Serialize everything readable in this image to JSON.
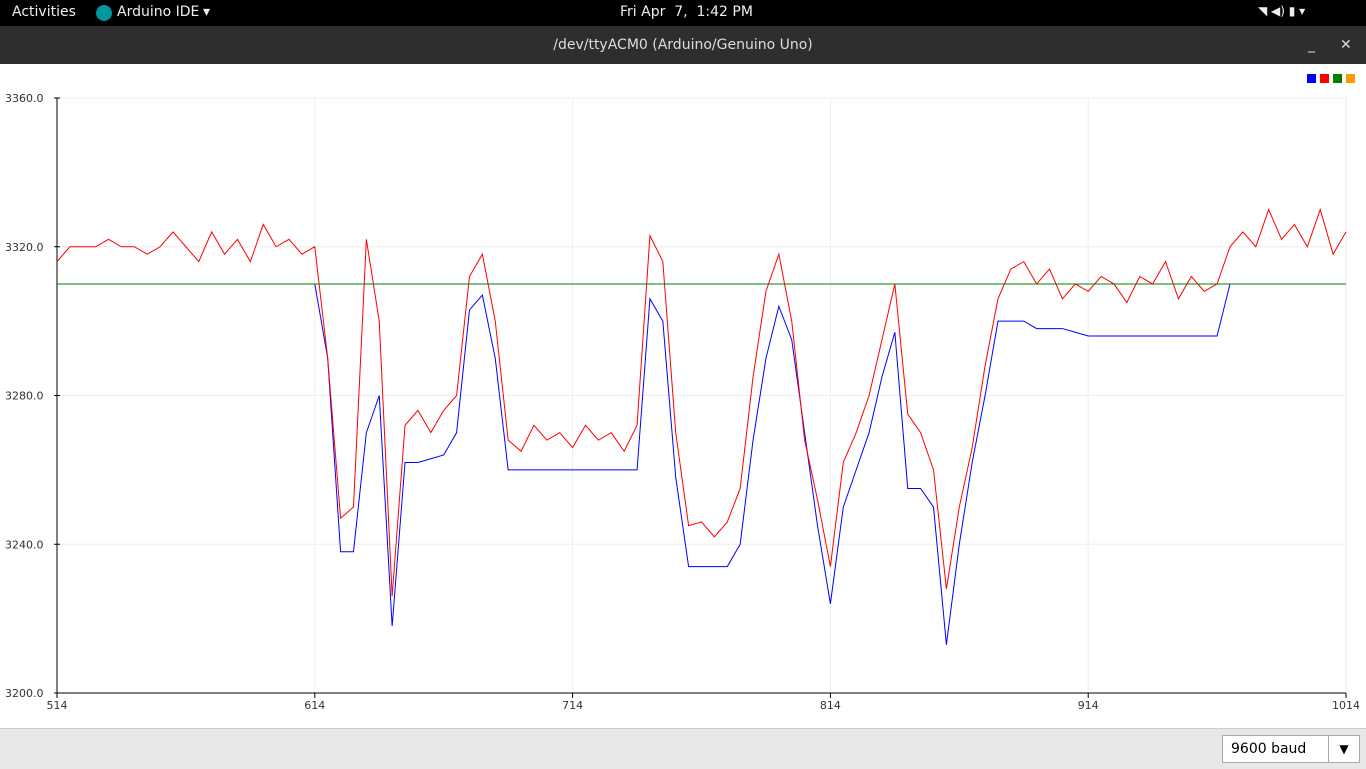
{
  "topbar": {
    "activities": "Activities",
    "app": "Arduino IDE",
    "clock": "Fri Apr  7,  1:42 PM"
  },
  "window": {
    "title": "/dev/ttyACM0 (Arduino/Genuino Uno)"
  },
  "baud": "9600 baud",
  "chart_data": {
    "type": "line",
    "x": [
      514,
      519,
      524,
      529,
      534,
      539,
      544,
      549,
      554,
      559,
      564,
      569,
      574,
      579,
      584,
      589,
      594,
      599,
      604,
      609,
      614,
      619,
      624,
      629,
      634,
      639,
      644,
      649,
      654,
      659,
      664,
      669,
      674,
      679,
      684,
      689,
      694,
      699,
      704,
      709,
      714,
      719,
      724,
      729,
      734,
      739,
      744,
      749,
      754,
      759,
      764,
      769,
      774,
      779,
      784,
      789,
      794,
      799,
      804,
      809,
      814,
      819,
      824,
      829,
      834,
      839,
      844,
      849,
      854,
      859,
      864,
      869,
      874,
      879,
      884,
      889,
      894,
      899,
      904,
      909,
      914,
      919,
      924,
      929,
      934,
      939,
      944,
      949,
      954,
      959,
      964,
      969,
      974,
      979,
      984,
      989,
      994,
      999,
      1004,
      1009,
      1014
    ],
    "series": [
      {
        "color": "#0000ff",
        "values": [
          3310,
          3310,
          3310,
          3310,
          3310,
          3310,
          3310,
          3310,
          3310,
          3310,
          3310,
          3310,
          3310,
          3310,
          3310,
          3310,
          3310,
          3310,
          3310,
          3310,
          3310,
          3290,
          3238,
          3238,
          3270,
          3280,
          3218,
          3262,
          3262,
          3263,
          3264,
          3270,
          3303,
          3307,
          3290,
          3260,
          3260,
          3260,
          3260,
          3260,
          3260,
          3260,
          3260,
          3260,
          3260,
          3260,
          3306,
          3300,
          3258,
          3234,
          3234,
          3234,
          3234,
          3240,
          3268,
          3290,
          3304,
          3295,
          3270,
          3245,
          3224,
          3250,
          3260,
          3270,
          3285,
          3297,
          3255,
          3255,
          3250,
          3213,
          3240,
          3262,
          3280,
          3300,
          3300,
          3300,
          3298,
          3298,
          3298,
          3297,
          3296,
          3296,
          3296,
          3296,
          3296,
          3296,
          3296,
          3296,
          3296,
          3296,
          3296,
          3310,
          null,
          null,
          null,
          null,
          null,
          null,
          null,
          null,
          null
        ]
      },
      {
        "color": "#ff0000",
        "values": [
          3316,
          3320,
          3320,
          3320,
          3322,
          3320,
          3320,
          3318,
          3320,
          3324,
          3320,
          3316,
          3324,
          3318,
          3322,
          3316,
          3326,
          3320,
          3322,
          3318,
          3320,
          3290,
          3247,
          3250,
          3322,
          3300,
          3226,
          3272,
          3276,
          3270,
          3276,
          3280,
          3312,
          3318,
          3300,
          3268,
          3265,
          3272,
          3268,
          3270,
          3266,
          3272,
          3268,
          3270,
          3265,
          3272,
          3323,
          3316,
          3270,
          3245,
          3246,
          3242,
          3246,
          3255,
          3285,
          3308,
          3318,
          3300,
          3268,
          3252,
          3234,
          3262,
          3270,
          3280,
          3295,
          3310,
          3275,
          3270,
          3260,
          3228,
          3250,
          3266,
          3288,
          3306,
          3314,
          3316,
          3310,
          3314,
          3306,
          3310,
          3308,
          3312,
          3310,
          3305,
          3312,
          3310,
          3316,
          3306,
          3312,
          3308,
          3310,
          3320,
          3324,
          3320,
          3330,
          3322,
          3326,
          3320,
          3330,
          3318,
          3324
        ]
      },
      {
        "color": "#008000",
        "values": [
          3310,
          3310,
          3310,
          3310,
          3310,
          3310,
          3310,
          3310,
          3310,
          3310,
          3310,
          3310,
          3310,
          3310,
          3310,
          3310,
          3310,
          3310,
          3310,
          3310,
          3310,
          3310,
          3310,
          3310,
          3310,
          3310,
          3310,
          3310,
          3310,
          3310,
          3310,
          3310,
          3310,
          3310,
          3310,
          3310,
          3310,
          3310,
          3310,
          3310,
          3310,
          3310,
          3310,
          3310,
          3310,
          3310,
          3310,
          3310,
          3310,
          3310,
          3310,
          3310,
          3310,
          3310,
          3310,
          3310,
          3310,
          3310,
          3310,
          3310,
          3310,
          3310,
          3310,
          3310,
          3310,
          3310,
          3310,
          3310,
          3310,
          3310,
          3310,
          3310,
          3310,
          3310,
          3310,
          3310,
          3310,
          3310,
          3310,
          3310,
          3310,
          3310,
          3310,
          3310,
          3310,
          3310,
          3310,
          3310,
          3310,
          3310,
          3310,
          3310,
          3310,
          3310,
          3310,
          3310,
          3310,
          3310,
          3310,
          3310,
          3310
        ]
      },
      {
        "color": "#ff9900",
        "values": [
          null,
          null,
          null,
          null,
          null,
          null,
          null,
          null,
          null,
          null,
          null,
          null,
          null,
          null,
          null,
          null,
          null,
          null,
          null,
          null,
          null,
          null,
          null,
          null,
          null,
          null,
          null,
          null,
          null,
          null,
          null,
          null,
          null,
          null,
          null,
          null,
          null,
          null,
          null,
          null,
          null,
          null,
          null,
          null,
          null,
          null,
          null,
          null,
          null,
          null,
          null,
          null,
          null,
          null,
          null,
          null,
          null,
          null,
          null,
          null,
          null,
          null,
          null,
          null,
          null,
          null,
          null,
          null,
          null,
          null,
          null,
          null,
          null,
          null,
          null,
          null,
          null,
          null,
          null,
          null,
          null,
          null,
          null,
          null,
          null,
          null,
          null,
          null,
          null,
          null,
          null,
          null,
          null,
          null,
          null,
          null,
          null,
          null,
          null,
          null,
          null
        ]
      }
    ],
    "xlim": [
      514,
      1014
    ],
    "xticks": [
      514,
      614,
      714,
      814,
      914,
      1014
    ],
    "ylim": [
      3200,
      3360
    ],
    "yticks": [
      {
        "value": 3200,
        "label": "3200.0"
      },
      {
        "value": 3240,
        "label": "3240.0"
      },
      {
        "value": 3280,
        "label": "3280.0"
      },
      {
        "value": 3320,
        "label": "3320.0"
      },
      {
        "value": 3360,
        "label": "3360.0"
      }
    ],
    "grid": true
  }
}
